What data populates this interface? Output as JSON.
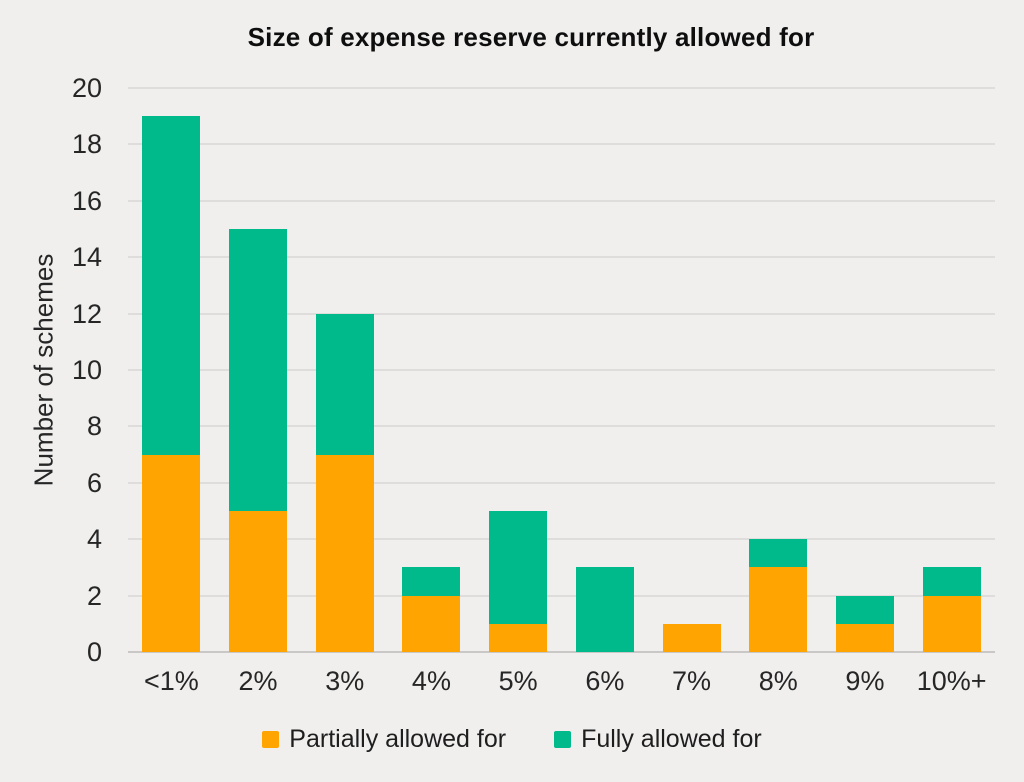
{
  "chart_data": {
    "type": "bar",
    "stacked": true,
    "title": "Size of expense reserve currently allowed for",
    "xlabel": "",
    "ylabel": "Number of schemes",
    "categories": [
      "<1%",
      "2%",
      "3%",
      "4%",
      "5%",
      "6%",
      "7%",
      "8%",
      "9%",
      "10%+"
    ],
    "series": [
      {
        "name": "Partially allowed for",
        "color": "#FFA400",
        "values": [
          7,
          5,
          7,
          2,
          1,
          0,
          1,
          3,
          1,
          2
        ]
      },
      {
        "name": "Fully allowed for",
        "color": "#00BA8C",
        "values": [
          12,
          10,
          5,
          1,
          4,
          3,
          0,
          1,
          1,
          1
        ]
      }
    ],
    "totals": [
      19,
      15,
      12,
      3,
      5,
      3,
      1,
      4,
      2,
      3
    ],
    "ylim": [
      0,
      20
    ],
    "ytick_step": 2,
    "grid": true,
    "legend_position": "bottom"
  },
  "colors": {
    "background": "#f0efee",
    "gridline": "#dedddc",
    "axis_line": "#c9c8c7",
    "text": "#262626",
    "partial": "#FFA400",
    "full": "#00BA8C"
  }
}
